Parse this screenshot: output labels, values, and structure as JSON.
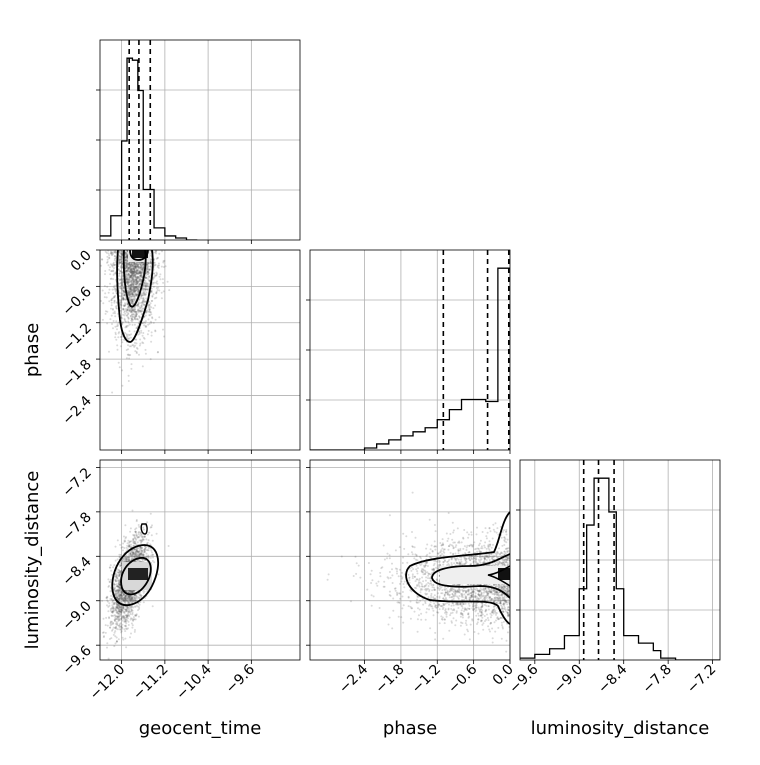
{
  "chart_data": {
    "type": "corner",
    "parameters": [
      "geocent_time",
      "phase",
      "luminosity_distance"
    ],
    "ranges": {
      "geocent_time": [
        -12.4,
        -8.7
      ],
      "phase": [
        -3.3,
        0.0
      ],
      "luminosity_distance": [
        -9.8,
        -7.1
      ]
    },
    "ticks": {
      "geocent_time": [
        "−12.0",
        "−11.2",
        "−10.4",
        "−9.6"
      ],
      "geocent_time_values": [
        -12.0,
        -11.2,
        -10.4,
        -9.6
      ],
      "phase": [
        "−2.4",
        "−1.8",
        "−1.2",
        "−0.6",
        "0.0"
      ],
      "phase_values": [
        -2.4,
        -1.8,
        -1.2,
        -0.6,
        0.0
      ],
      "luminosity_distance": [
        "−9.6",
        "−9.0",
        "−8.4",
        "−7.8",
        "−7.2"
      ],
      "luminosity_distance_values": [
        -9.6,
        -9.0,
        -8.4,
        -7.8,
        -7.2
      ],
      "phase_y": [
        "0.0",
        "−0.6",
        "−1.2",
        "−1.8",
        "−2.4"
      ],
      "phase_y_values": [
        0.0,
        -0.6,
        -1.2,
        -1.8,
        -2.4
      ],
      "luminosity_distance_y": [
        "−7.2",
        "−7.8",
        "−8.4",
        "−9.0",
        "−9.6"
      ],
      "luminosity_distance_y_values": [
        -7.2,
        -7.8,
        -8.4,
        -9.0,
        -9.6
      ]
    },
    "histograms": {
      "geocent_time": {
        "edges": [
          -12.4,
          -12.2,
          -12.0,
          -11.9,
          -11.8,
          -11.7,
          -11.6,
          -11.4,
          -11.2,
          -11.0,
          -10.8,
          -10.6
        ],
        "counts": [
          0.02,
          0.12,
          0.49,
          0.9,
          0.89,
          0.74,
          0.25,
          0.06,
          0.02,
          0.01,
          0.0
        ],
        "quantiles": [
          -11.86,
          -11.68,
          -11.47
        ]
      },
      "phase": {
        "edges": [
          -3.3,
          -2.4,
          -2.2,
          -2.0,
          -1.8,
          -1.6,
          -1.4,
          -1.2,
          -1.0,
          -0.8,
          -0.6,
          -0.4,
          -0.2,
          -0.1,
          0.0
        ],
        "counts": [
          0.0,
          0.01,
          0.03,
          0.05,
          0.07,
          0.09,
          0.11,
          0.15,
          0.2,
          0.25,
          0.25,
          0.24,
          0.9,
          0.9
        ],
        "quantiles": [
          -1.1,
          -0.37,
          -0.02
        ]
      },
      "luminosity_distance": {
        "edges": [
          -9.8,
          -9.6,
          -9.4,
          -9.2,
          -9.0,
          -8.9,
          -8.8,
          -8.6,
          -8.5,
          -8.4,
          -8.2,
          -8.0,
          -7.9,
          -7.7,
          -7.1
        ],
        "counts": [
          0.01,
          0.03,
          0.06,
          0.13,
          0.38,
          0.72,
          0.97,
          0.79,
          0.38,
          0.13,
          0.09,
          0.05,
          0.01,
          0.0
        ],
        "quantiles": [
          -8.94,
          -8.74,
          -8.53
        ]
      }
    },
    "scatter": {
      "phase_vs_geocent_time": {
        "center": [
          -11.78,
          -0.35
        ],
        "spread": [
          0.2,
          0.55
        ],
        "n": 2200
      },
      "luminosity_distance_vs_geocent_time": {
        "center": [
          -11.86,
          -8.74
        ],
        "spread": [
          0.17,
          0.3
        ],
        "n": 2200,
        "correlation": 0.55
      },
      "luminosity_distance_vs_phase": {
        "center": [
          -0.2,
          -8.74
        ],
        "spread": [
          0.7,
          0.28
        ],
        "n": 2200
      }
    }
  }
}
